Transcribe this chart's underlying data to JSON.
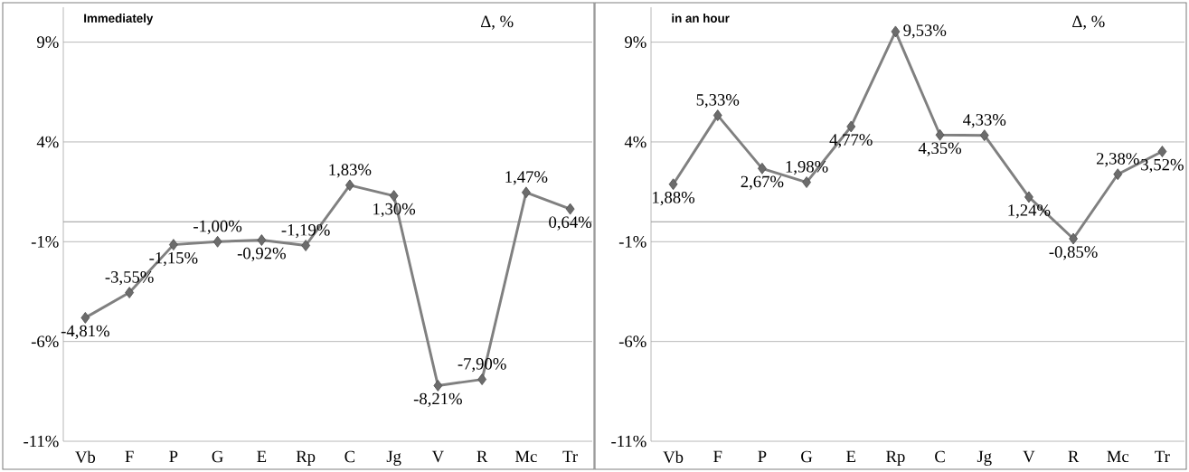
{
  "chart_data": [
    {
      "type": "line",
      "title": "Immediately",
      "ylabel": "Δ, %",
      "categories": [
        "Vb",
        "F",
        "P",
        "G",
        "E",
        "Rp",
        "C",
        "Jg",
        "V",
        "R",
        "Mc",
        "Tr"
      ],
      "values": [
        -4.81,
        -3.55,
        -1.15,
        -1.0,
        -0.92,
        -1.19,
        1.83,
        1.3,
        -8.21,
        -7.9,
        1.47,
        0.64
      ],
      "value_labels": [
        "-4,81%",
        "-3,55%",
        "-1,15%",
        "-1,00%",
        "-0,92%",
        "-1,19%",
        "1,83%",
        "1,30%",
        "-8,21%",
        "-7,90%",
        "1,47%",
        "0,64%"
      ],
      "color": "#808080",
      "marker": "diamond",
      "ylim": [
        -11,
        10.75
      ],
      "yticks": [
        {
          "value": -11,
          "label": "-11%"
        },
        {
          "value": -6,
          "label": "-6%"
        },
        {
          "value": -1,
          "label": "-1%"
        },
        {
          "value": 4,
          "label": "4%"
        },
        {
          "value": 9,
          "label": "9%"
        }
      ],
      "grid": "y",
      "ref_lines": [
        {
          "axis": "y",
          "value": 0
        }
      ]
    },
    {
      "type": "line",
      "title": "in an hour",
      "ylabel": "Δ, %",
      "categories": [
        "Vb",
        "F",
        "P",
        "G",
        "E",
        "Rp",
        "C",
        "Jg",
        "V",
        "R",
        "Mc",
        "Tr"
      ],
      "values": [
        1.88,
        5.33,
        2.67,
        1.98,
        4.77,
        9.53,
        4.35,
        4.33,
        1.24,
        -0.85,
        2.38,
        3.52
      ],
      "value_labels": [
        "1,88%",
        "5,33%",
        "2,67%",
        "1,98%",
        "4,77%",
        "9,53%",
        "4,35%",
        "4,33%",
        "1,24%",
        "-0,85%",
        "2,38%",
        "3,52%"
      ],
      "color": "#808080",
      "marker": "diamond",
      "ylim": [
        -11,
        10.75
      ],
      "yticks": [
        {
          "value": -11,
          "label": "-11%"
        },
        {
          "value": -6,
          "label": "-6%"
        },
        {
          "value": -1,
          "label": "-1%"
        },
        {
          "value": 4,
          "label": "4%"
        },
        {
          "value": 9,
          "label": "9%"
        }
      ],
      "grid": "y",
      "ref_lines": [
        {
          "axis": "y",
          "value": 0
        }
      ]
    }
  ]
}
